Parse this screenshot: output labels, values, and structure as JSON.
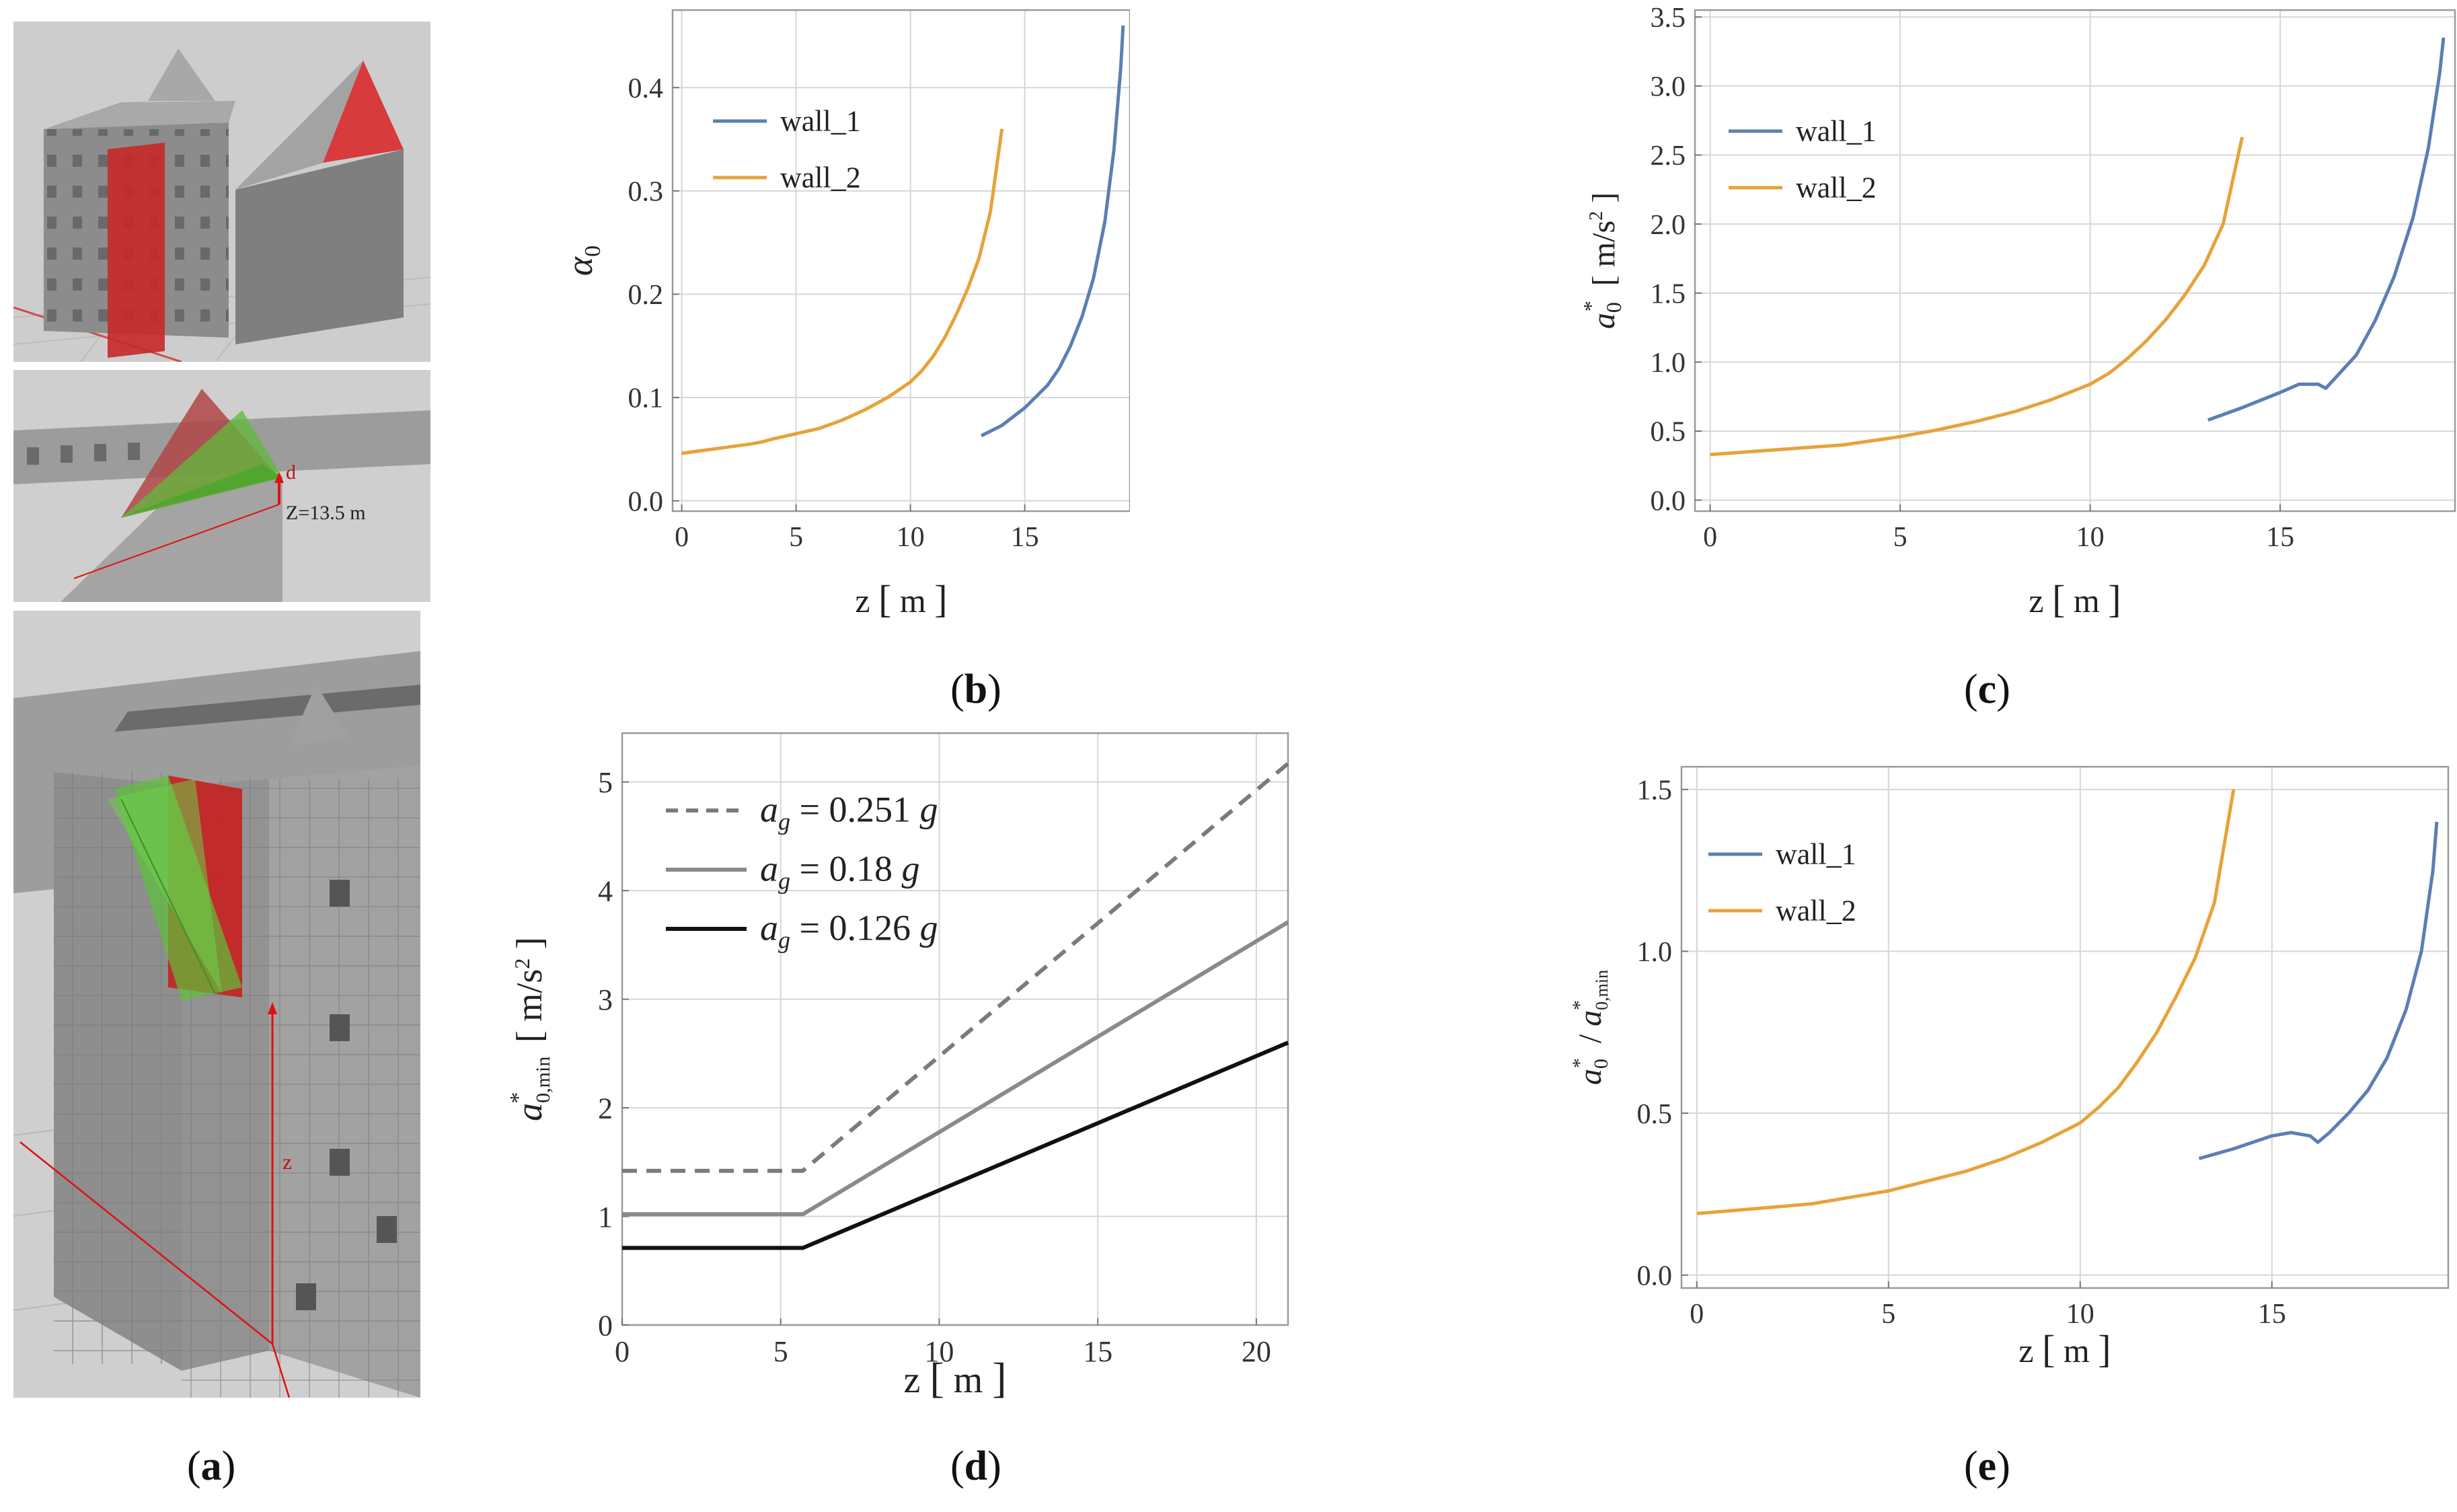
{
  "panel_a": {
    "caption_open": "(",
    "caption_letter": "a",
    "caption_close": ")",
    "annotation_d": "d",
    "annotation_z": "Z=13.5 m",
    "annotation_z_axis": "z"
  },
  "captions": {
    "b": "b",
    "c": "c",
    "d": "d",
    "e": "e"
  },
  "colors": {
    "wall_1": "#5b7fb4",
    "wall_2": "#e6a33a",
    "grid": "#d6d6d6",
    "frame": "#9a9a9a"
  },
  "chart_data": [
    {
      "id": "b",
      "type": "line",
      "title": "",
      "xlabel": "z",
      "xunit": "m",
      "ylabel": "α0",
      "xlim": [
        -0.4,
        19.6
      ],
      "ylim": [
        -0.01,
        0.475
      ],
      "xticks": [
        0,
        5,
        10,
        15
      ],
      "yticks": [
        0.0,
        0.1,
        0.2,
        0.3,
        0.4
      ],
      "ytick_labels": [
        "0.0",
        "0.1",
        "0.2",
        "0.3",
        "0.4"
      ],
      "legend": "top-left",
      "series": [
        {
          "name": "wall_1",
          "color": "#5b7fb4",
          "x": [
            13.1,
            14,
            15,
            16,
            16.5,
            17,
            17.5,
            18,
            18.5,
            18.9,
            19.2,
            19.3
          ],
          "y": [
            0.063,
            0.073,
            0.09,
            0.112,
            0.128,
            0.15,
            0.178,
            0.215,
            0.27,
            0.34,
            0.42,
            0.46
          ]
        },
        {
          "name": "wall_2",
          "color": "#e6a33a",
          "x": [
            0,
            1,
            2,
            3,
            3.5,
            4,
            5,
            6,
            7,
            8,
            9,
            10,
            10.5,
            11,
            11.5,
            12,
            12.5,
            13,
            13.5,
            14.0
          ],
          "y": [
            0.046,
            0.049,
            0.052,
            0.055,
            0.057,
            0.06,
            0.065,
            0.07,
            0.078,
            0.088,
            0.1,
            0.115,
            0.126,
            0.14,
            0.158,
            0.18,
            0.205,
            0.235,
            0.28,
            0.36
          ]
        }
      ]
    },
    {
      "id": "c",
      "type": "line",
      "title": "",
      "xlabel": "z",
      "xunit": "m",
      "ylabel": "a0*",
      "yunit": "m/s²",
      "xlim": [
        -0.4,
        19.6
      ],
      "ylim": [
        -0.08,
        3.55
      ],
      "xticks": [
        0,
        5,
        10,
        15
      ],
      "yticks": [
        0.0,
        0.5,
        1.0,
        1.5,
        2.0,
        2.5,
        3.0,
        3.5
      ],
      "ytick_labels": [
        "0.0",
        "0.5",
        "1.0",
        "1.5",
        "2.0",
        "2.5",
        "3.0",
        "3.5"
      ],
      "legend": "top-left",
      "series": [
        {
          "name": "wall_1",
          "color": "#5b7fb4",
          "x": [
            13.1,
            14,
            15,
            15.5,
            16,
            16.2,
            16.5,
            17,
            17.5,
            18,
            18.5,
            18.9,
            19.2,
            19.3
          ],
          "y": [
            0.58,
            0.67,
            0.78,
            0.84,
            0.84,
            0.81,
            0.9,
            1.05,
            1.3,
            1.62,
            2.05,
            2.55,
            3.1,
            3.35
          ]
        },
        {
          "name": "wall_2",
          "color": "#e6a33a",
          "x": [
            0,
            1,
            2,
            3,
            3.5,
            4,
            5,
            6,
            7,
            8,
            9,
            10,
            10.5,
            11,
            11.5,
            12,
            12.5,
            13,
            13.5,
            14.0
          ],
          "y": [
            0.33,
            0.35,
            0.37,
            0.39,
            0.4,
            0.42,
            0.46,
            0.51,
            0.57,
            0.64,
            0.73,
            0.84,
            0.92,
            1.03,
            1.16,
            1.31,
            1.49,
            1.7,
            2.0,
            2.63
          ]
        }
      ]
    },
    {
      "id": "d",
      "type": "line",
      "title": "",
      "xlabel": "z",
      "xunit": "m",
      "ylabel": "a*0,min",
      "yunit": "m/s²",
      "xlim": [
        0,
        21
      ],
      "ylim": [
        0,
        5.45
      ],
      "xticks": [
        0,
        5,
        10,
        15,
        20
      ],
      "yticks": [
        0,
        1,
        2,
        3,
        4,
        5
      ],
      "ytick_labels": [
        "0",
        "1",
        "2",
        "3",
        "4",
        "5"
      ],
      "legend": "top-left",
      "series": [
        {
          "name": "ag = 0.251 g",
          "label_sym": "a",
          "label_sub": "g",
          "label_val": " = 0.251 ",
          "label_g": "g",
          "color": "#7b7b7b",
          "dash": true,
          "x": [
            0,
            5.7,
            21
          ],
          "y": [
            1.42,
            1.42,
            5.17
          ]
        },
        {
          "name": "ag = 0.18 g",
          "label_sym": "a",
          "label_sub": "g",
          "label_val": " = 0.18 ",
          "label_g": "g",
          "color": "#8a8a8a",
          "dash": false,
          "x": [
            0,
            5.7,
            21
          ],
          "y": [
            1.02,
            1.02,
            3.71
          ]
        },
        {
          "name": "ag = 0.126 g",
          "label_sym": "a",
          "label_sub": "g",
          "label_val": " = 0.126 ",
          "label_g": "g",
          "color": "#111111",
          "dash": false,
          "x": [
            0,
            5.7,
            21
          ],
          "y": [
            0.71,
            0.71,
            2.6
          ]
        }
      ]
    },
    {
      "id": "e",
      "type": "line",
      "title": "",
      "xlabel": "z",
      "xunit": "m",
      "ylabel": "a0* / a*0,min",
      "xlim": [
        -0.4,
        19.6
      ],
      "ylim": [
        -0.04,
        1.57
      ],
      "xticks": [
        0,
        5,
        10,
        15
      ],
      "yticks": [
        0.0,
        0.5,
        1.0,
        1.5
      ],
      "ytick_labels": [
        "0.0",
        "0.5",
        "1.0",
        "1.5"
      ],
      "legend": "top-left",
      "series": [
        {
          "name": "wall_1",
          "color": "#5b7fb4",
          "x": [
            13.1,
            14,
            15,
            15.5,
            16,
            16.2,
            16.5,
            17,
            17.5,
            18,
            18.5,
            18.9,
            19.2,
            19.3
          ],
          "y": [
            0.36,
            0.39,
            0.43,
            0.44,
            0.43,
            0.41,
            0.44,
            0.5,
            0.57,
            0.67,
            0.82,
            1.0,
            1.25,
            1.4
          ]
        },
        {
          "name": "wall_2",
          "color": "#e6a33a",
          "x": [
            0,
            1,
            2,
            3,
            3.5,
            4,
            5,
            6,
            7,
            8,
            9,
            10,
            10.5,
            11,
            11.5,
            12,
            12.5,
            13,
            13.5,
            14.0
          ],
          "y": [
            0.19,
            0.2,
            0.21,
            0.22,
            0.23,
            0.24,
            0.26,
            0.29,
            0.32,
            0.36,
            0.41,
            0.47,
            0.52,
            0.58,
            0.66,
            0.75,
            0.86,
            0.98,
            1.15,
            1.5
          ]
        }
      ]
    }
  ]
}
